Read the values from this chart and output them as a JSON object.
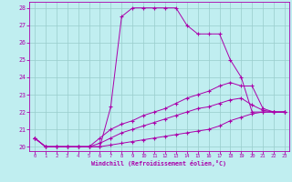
{
  "xlabel": "Windchill (Refroidissement éolien,°C)",
  "xlim": [
    -0.5,
    23.4
  ],
  "ylim": [
    19.75,
    28.35
  ],
  "yticks": [
    20,
    21,
    22,
    23,
    24,
    25,
    26,
    27,
    28
  ],
  "xticks": [
    0,
    1,
    2,
    3,
    4,
    5,
    6,
    7,
    8,
    9,
    10,
    11,
    12,
    13,
    14,
    15,
    16,
    17,
    18,
    19,
    20,
    21,
    22,
    23
  ],
  "line_color": "#aa00aa",
  "bg_color": "#c0eef0",
  "grid_color": "#99cccc",
  "line1_y": [
    20.5,
    20.0,
    20.0,
    20.0,
    20.0,
    20.0,
    20.0,
    22.3,
    27.5,
    28.0,
    28.0,
    28.0,
    28.0,
    28.0,
    27.0,
    26.5,
    26.5,
    26.5,
    25.0,
    24.0,
    22.0,
    22.0,
    22.0,
    22.0
  ],
  "line2_y": [
    20.5,
    20.0,
    20.0,
    20.0,
    20.0,
    20.0,
    20.5,
    21.0,
    21.3,
    21.5,
    21.8,
    22.0,
    22.2,
    22.5,
    22.8,
    23.0,
    23.2,
    23.5,
    23.7,
    23.5,
    23.5,
    22.2,
    22.0,
    22.0
  ],
  "line3_y": [
    20.5,
    20.0,
    20.0,
    20.0,
    20.0,
    20.0,
    20.2,
    20.5,
    20.8,
    21.0,
    21.2,
    21.4,
    21.6,
    21.8,
    22.0,
    22.2,
    22.3,
    22.5,
    22.7,
    22.8,
    22.4,
    22.1,
    22.0,
    22.0
  ],
  "line4_y": [
    20.5,
    20.0,
    20.0,
    20.0,
    20.0,
    20.0,
    20.0,
    20.1,
    20.2,
    20.3,
    20.4,
    20.5,
    20.6,
    20.7,
    20.8,
    20.9,
    21.0,
    21.2,
    21.5,
    21.7,
    21.9,
    22.0,
    22.0,
    22.0
  ],
  "x": [
    0,
    1,
    2,
    3,
    4,
    5,
    6,
    7,
    8,
    9,
    10,
    11,
    12,
    13,
    14,
    15,
    16,
    17,
    18,
    19,
    20,
    21,
    22,
    23
  ]
}
